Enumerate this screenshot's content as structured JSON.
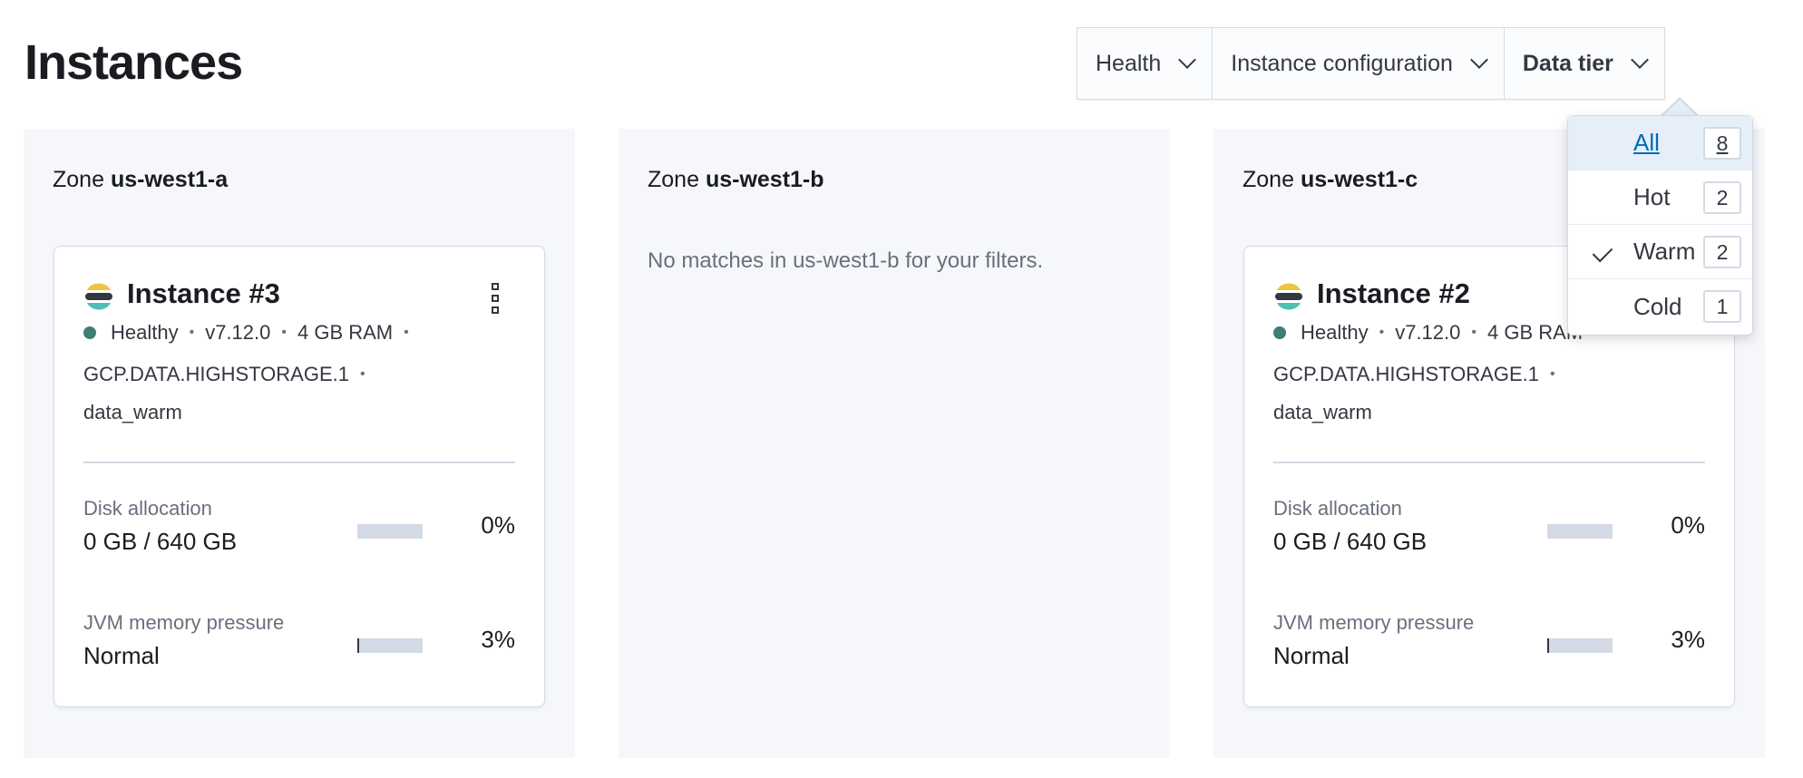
{
  "page_title": "Instances",
  "filters": [
    {
      "label": "Health"
    },
    {
      "label": "Instance configuration"
    },
    {
      "label": "Data tier",
      "active": true
    }
  ],
  "data_tier_dropdown": {
    "options": [
      {
        "label": "All",
        "count": "8",
        "highlighted": true,
        "checked": false
      },
      {
        "label": "Hot",
        "count": "2",
        "checked": false
      },
      {
        "label": "Warm",
        "count": "2",
        "checked": true
      },
      {
        "label": "Cold",
        "count": "1",
        "checked": false
      }
    ]
  },
  "zones": [
    {
      "prefix": "Zone",
      "name": "us-west1-a",
      "instance": {
        "title": "Instance #3",
        "health": "Healthy",
        "health_color": "#3f7e75",
        "version": "v7.12.0",
        "ram": "4 GB RAM",
        "config": "GCP.DATA.HIGHSTORAGE.1",
        "tier": "data_warm",
        "disk_label": "Disk allocation",
        "disk_value": "0 GB / 640 GB",
        "disk_pct": "0%",
        "disk_fraction": 0,
        "jvm_label": "JVM memory pressure",
        "jvm_value": "Normal",
        "jvm_pct": "3%",
        "jvm_fraction": 0.03
      }
    },
    {
      "prefix": "Zone",
      "name": "us-west1-b",
      "empty_message": "No matches in us-west1-b for your filters."
    },
    {
      "prefix": "Zone",
      "name": "us-west1-c",
      "instance": {
        "title": "Instance #2",
        "health": "Healthy",
        "health_color": "#3f7e75",
        "version": "v7.12.0",
        "ram": "4 GB RAM",
        "config": "GCP.DATA.HIGHSTORAGE.1",
        "tier": "data_warm",
        "disk_label": "Disk allocation",
        "disk_value": "0 GB / 640 GB",
        "disk_pct": "0%",
        "disk_fraction": 0,
        "jvm_label": "JVM memory pressure",
        "jvm_value": "Normal",
        "jvm_pct": "3%",
        "jvm_fraction": 0.03
      }
    }
  ]
}
